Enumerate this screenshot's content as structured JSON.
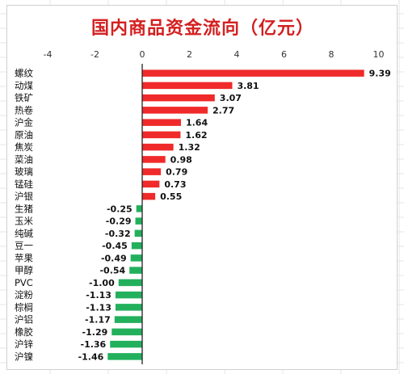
{
  "chart_data": {
    "type": "bar",
    "orientation": "horizontal",
    "title": "国内商品资金流向（亿元）",
    "xlim": [
      -4,
      10
    ],
    "x_ticks": [
      -4,
      -2,
      0,
      2,
      4,
      6,
      8,
      10
    ],
    "x_tick_labels": [
      "-4",
      "-2",
      "0",
      "2",
      "4",
      "6",
      "8",
      "10"
    ],
    "grid": false,
    "legend": "none",
    "colors": {
      "positive": "#f02a2a",
      "negative": "#22b05c",
      "axis": "#222222"
    },
    "categories": [
      "螺纹",
      "动煤",
      "铁矿",
      "热卷",
      "沪金",
      "原油",
      "焦炭",
      "菜油",
      "玻璃",
      "锰硅",
      "沪银",
      "生猪",
      "玉米",
      "纯碱",
      "豆一",
      "苹果",
      "甲醇",
      "PVC",
      "淀粉",
      "棕榈",
      "沪铝",
      "橡胶",
      "沪锌",
      "沪镍"
    ],
    "values": [
      9.39,
      3.81,
      3.07,
      2.77,
      1.64,
      1.62,
      1.32,
      0.98,
      0.79,
      0.73,
      0.55,
      -0.25,
      -0.29,
      -0.32,
      -0.45,
      -0.49,
      -0.54,
      -1.0,
      -1.13,
      -1.13,
      -1.17,
      -1.29,
      -1.36,
      -1.46
    ],
    "value_labels": [
      "9.39",
      "3.81",
      "3.07",
      "2.77",
      "1.64",
      "1.62",
      "1.32",
      "0.98",
      "0.79",
      "0.73",
      "0.55",
      "-0.25",
      "-0.29",
      "-0.32",
      "-0.45",
      "-0.49",
      "-0.54",
      "-1.00",
      "-1.13",
      "-1.13",
      "-1.17",
      "-1.29",
      "-1.36",
      "-1.46"
    ]
  }
}
